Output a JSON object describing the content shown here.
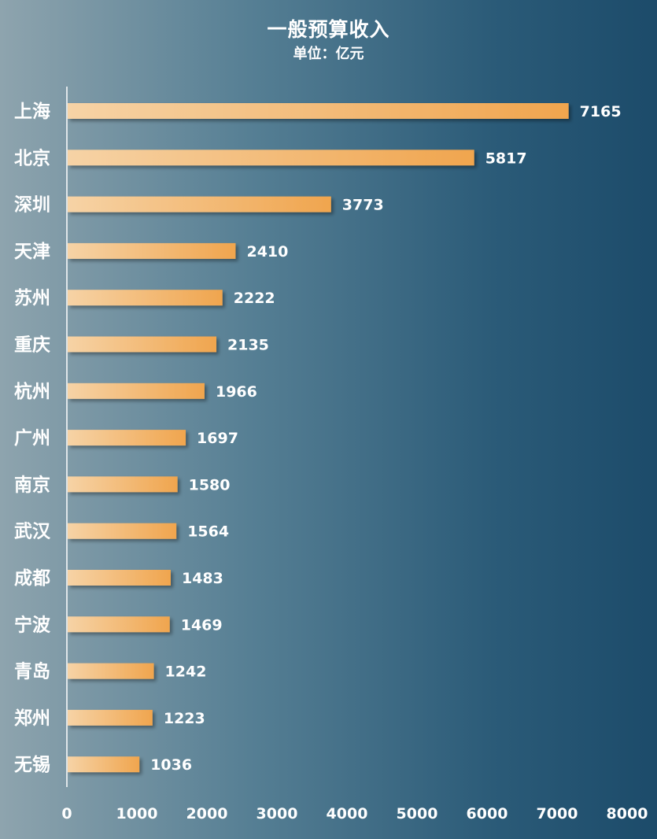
{
  "chart_data": {
    "type": "bar",
    "orientation": "horizontal",
    "title": "一般预算收入",
    "subtitle": "单位：亿元",
    "categories": [
      "上海",
      "北京",
      "深圳",
      "天津",
      "苏州",
      "重庆",
      "杭州",
      "广州",
      "南京",
      "武汉",
      "成都",
      "宁波",
      "青岛",
      "郑州",
      "无锡"
    ],
    "values": [
      7165,
      5817,
      3773,
      2410,
      2222,
      2135,
      1966,
      1697,
      1580,
      1564,
      1483,
      1469,
      1242,
      1223,
      1036
    ],
    "xlim": [
      0,
      8000
    ],
    "xticks": [
      "0",
      "1000",
      "2000",
      "3000",
      "4000",
      "5000",
      "6000",
      "7000",
      "8000"
    ],
    "data_labels": true,
    "grid": false,
    "legend": "none",
    "colors": {
      "bar_start": "#f6d3a6",
      "bar_end": "#f0a54e",
      "text": "#ffffff",
      "axis_line": "#ffffff",
      "background_left": "#8ea4ae",
      "background_right": "#1c4b6a"
    }
  }
}
